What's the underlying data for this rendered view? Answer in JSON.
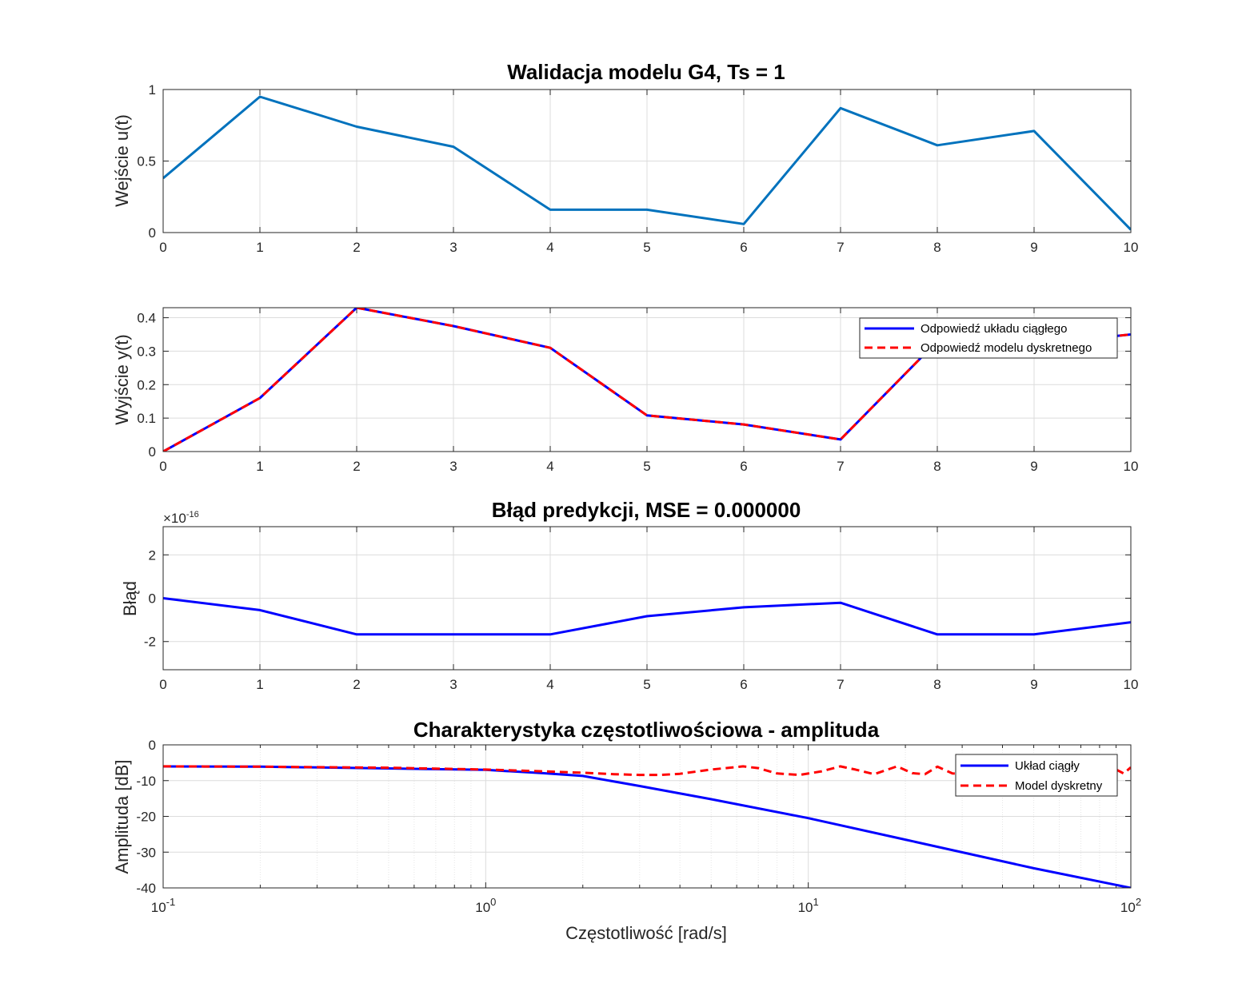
{
  "chart_data": [
    {
      "type": "line",
      "title": "Walidacja modelu G4, Ts = 1",
      "xlabel": "",
      "ylabel": "Wejście u(t)",
      "xlim": [
        0,
        10
      ],
      "ylim": [
        0,
        1
      ],
      "xticks": [
        0,
        1,
        2,
        3,
        4,
        5,
        6,
        7,
        8,
        9,
        10
      ],
      "yticks": [
        0,
        0.5,
        1
      ],
      "ytick_labels": [
        "0",
        "0.5",
        "1"
      ],
      "grid": true,
      "series": [
        {
          "color": "#0072BD",
          "dash": "solid",
          "x": [
            0,
            1,
            2,
            3,
            4,
            5,
            6,
            7,
            8,
            9,
            10
          ],
          "y": [
            0.38,
            0.95,
            0.74,
            0.6,
            0.16,
            0.16,
            0.06,
            0.87,
            0.61,
            0.71,
            0.02
          ]
        }
      ]
    },
    {
      "type": "line",
      "title": "",
      "xlabel": "",
      "ylabel": "Wyjście y(t)",
      "xlim": [
        0,
        10
      ],
      "ylim": [
        0,
        0.43
      ],
      "xticks": [
        0,
        1,
        2,
        3,
        4,
        5,
        6,
        7,
        8,
        9,
        10
      ],
      "yticks": [
        0,
        0.1,
        0.2,
        0.3,
        0.4
      ],
      "ytick_labels": [
        "0",
        "0.1",
        "0.2",
        "0.3",
        "0.4"
      ],
      "grid": true,
      "legend": "top-right",
      "series": [
        {
          "name": "Odpowiedź układu ciągłego",
          "color": "#0000FF",
          "dash": "solid",
          "x": [
            0,
            1,
            2,
            3,
            4,
            5,
            6,
            7,
            8,
            9,
            10
          ],
          "y": [
            0,
            0.16,
            0.43,
            0.375,
            0.31,
            0.108,
            0.081,
            0.036,
            0.33,
            0.32,
            0.35
          ]
        },
        {
          "name": "Odpowiedź modelu dyskretnego",
          "color": "#FF0000",
          "dash": "dashed",
          "x": [
            0,
            1,
            2,
            3,
            4,
            5,
            6,
            7,
            8,
            9,
            10
          ],
          "y": [
            0,
            0.16,
            0.43,
            0.375,
            0.31,
            0.108,
            0.081,
            0.036,
            0.33,
            0.32,
            0.35
          ]
        }
      ]
    },
    {
      "type": "line",
      "title": "Błąd predykcji, MSE = 0.000000",
      "xlabel": "",
      "ylabel": "Błąd",
      "exponent_label": "×10",
      "exponent_power": "-16",
      "xlim": [
        0,
        10
      ],
      "ylim": [
        -3.3,
        3.3
      ],
      "xticks": [
        0,
        1,
        2,
        3,
        4,
        5,
        6,
        7,
        8,
        9,
        10
      ],
      "yticks": [
        -2,
        0,
        2
      ],
      "ytick_labels": [
        "-2",
        "0",
        "2"
      ],
      "grid": true,
      "series": [
        {
          "color": "#0000FF",
          "dash": "solid",
          "x": [
            0,
            1,
            2,
            3,
            4,
            5,
            6,
            7,
            8,
            9,
            10
          ],
          "y": [
            0,
            -0.55,
            -1.67,
            -1.67,
            -1.67,
            -0.83,
            -0.42,
            -0.21,
            -1.67,
            -1.67,
            -1.11
          ]
        }
      ]
    },
    {
      "type": "line",
      "title": "Charakterystyka częstotliwościowa - amplituda",
      "xlabel": "Częstotliwość [rad/s]",
      "ylabel": "Amplituda [dB]",
      "xscale": "log",
      "xlim": [
        0.1,
        100
      ],
      "ylim": [
        -40,
        0
      ],
      "xticks": [
        0.1,
        1,
        10,
        100
      ],
      "xtick_base": "10",
      "xtick_powers": [
        "-1",
        "0",
        "1",
        "2"
      ],
      "yticks": [
        -40,
        -30,
        -20,
        -10,
        0
      ],
      "ytick_labels": [
        "-40",
        "-30",
        "-20",
        "-10",
        "0"
      ],
      "grid": true,
      "legend": "top-right",
      "series": [
        {
          "name": "Układ ciągły",
          "color": "#0000FF",
          "dash": "solid",
          "x": [
            0.1,
            0.2,
            0.5,
            1,
            1.5,
            2,
            3,
            5,
            10,
            20,
            50,
            100
          ],
          "y": [
            -6.03,
            -6.1,
            -6.6,
            -7.0,
            -7.9,
            -8.7,
            -11.5,
            -15.2,
            -20.5,
            -26.5,
            -34.5,
            -40.0
          ]
        },
        {
          "name": "Model dyskretny",
          "color": "#FF0000",
          "dash": "dashed",
          "x": [
            0.1,
            0.2,
            0.5,
            1,
            1.5,
            2,
            2.5,
            3,
            3.5,
            4,
            5,
            6.28,
            7,
            8,
            9.42,
            11,
            12.57,
            14,
            16,
            18.85,
            21,
            23,
            25.13,
            28,
            32,
            37.7,
            42,
            46,
            50.27,
            55,
            60,
            65,
            69.1,
            75,
            82,
            87.96,
            95,
            100
          ],
          "y": [
            -6.0,
            -6.1,
            -6.4,
            -6.9,
            -7.4,
            -7.8,
            -8.2,
            -8.4,
            -8.4,
            -8.1,
            -6.9,
            -6.0,
            -6.5,
            -8.0,
            -8.4,
            -7.4,
            -6.0,
            -6.9,
            -8.2,
            -6.0,
            -7.9,
            -8.2,
            -6.1,
            -8.0,
            -8.2,
            -6.1,
            -8.1,
            -8.2,
            -6.1,
            -8.1,
            -7.6,
            -7.4,
            -6.9,
            -8.3,
            -7.2,
            -6.4,
            -8.0,
            -6.3
          ]
        }
      ]
    }
  ]
}
